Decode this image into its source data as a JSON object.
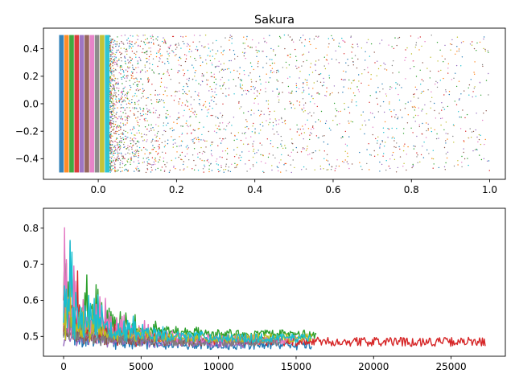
{
  "colors": [
    "#1f77b4",
    "#ff7f0e",
    "#2ca02c",
    "#d62728",
    "#9467bd",
    "#8c564b",
    "#e377c2",
    "#7f7f7f",
    "#bcbd22",
    "#17becf"
  ],
  "chart_data": [
    {
      "type": "scatter",
      "title": "Sakura",
      "xlim": [
        -0.14,
        1.04
      ],
      "ylim": [
        -0.55,
        0.55
      ],
      "xticks": [
        0.0,
        0.2,
        0.4,
        0.6,
        0.8,
        1.0
      ],
      "xtick_labels": [
        "0.0",
        "0.2",
        "0.4",
        "0.6",
        "0.8",
        "1.0"
      ],
      "yticks": [
        -0.4,
        -0.2,
        0.0,
        0.2,
        0.4
      ],
      "ytick_labels": [
        "−0.4",
        "−0.2",
        "0.0",
        "0.2",
        "0.4"
      ],
      "y_range": [
        -0.5,
        0.5
      ],
      "series_count": 10,
      "dense_band_x": [
        -0.1,
        0.03
      ],
      "max_x": 1.0,
      "grid": false,
      "legend": "none"
    },
    {
      "type": "line",
      "xlim": [
        -1300,
        28500
      ],
      "ylim": [
        0.445,
        0.855
      ],
      "xticks": [
        0,
        5000,
        10000,
        15000,
        20000,
        25000
      ],
      "xtick_labels": [
        "0",
        "5000",
        "10000",
        "15000",
        "20000",
        "25000"
      ],
      "yticks": [
        0.5,
        0.6,
        0.7,
        0.8
      ],
      "ytick_labels": [
        "0.5",
        "0.6",
        "0.7",
        "0.8"
      ],
      "series": [
        {
          "color_index": 0,
          "length": 16000,
          "peak": 0.6,
          "base": 0.47
        },
        {
          "color_index": 1,
          "length": 6500,
          "peak": 0.6,
          "base": 0.49
        },
        {
          "color_index": 2,
          "length": 16300,
          "peak": 0.84,
          "base": 0.5
        },
        {
          "color_index": 3,
          "length": 27200,
          "peak": 0.76,
          "base": 0.48
        },
        {
          "color_index": 4,
          "length": 12000,
          "peak": 0.55,
          "base": 0.475
        },
        {
          "color_index": 5,
          "length": 9000,
          "peak": 0.58,
          "base": 0.48
        },
        {
          "color_index": 6,
          "length": 15000,
          "peak": 0.84,
          "base": 0.485
        },
        {
          "color_index": 7,
          "length": 14000,
          "peak": 0.58,
          "base": 0.48
        },
        {
          "color_index": 8,
          "length": 16000,
          "peak": 0.66,
          "base": 0.49
        },
        {
          "color_index": 9,
          "length": 16000,
          "peak": 0.84,
          "base": 0.49
        }
      ],
      "grid": false,
      "legend": "none"
    }
  ]
}
